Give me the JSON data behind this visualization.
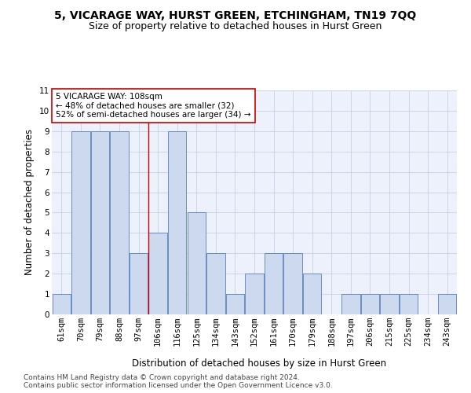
{
  "title": "5, VICARAGE WAY, HURST GREEN, ETCHINGHAM, TN19 7QQ",
  "subtitle": "Size of property relative to detached houses in Hurst Green",
  "xlabel": "Distribution of detached houses by size in Hurst Green",
  "ylabel": "Number of detached properties",
  "categories": [
    "61sqm",
    "70sqm",
    "79sqm",
    "88sqm",
    "97sqm",
    "106sqm",
    "116sqm",
    "125sqm",
    "134sqm",
    "143sqm",
    "152sqm",
    "161sqm",
    "170sqm",
    "179sqm",
    "188sqm",
    "197sqm",
    "206sqm",
    "215sqm",
    "225sqm",
    "234sqm",
    "243sqm"
  ],
  "values": [
    1,
    9,
    9,
    9,
    3,
    4,
    9,
    5,
    3,
    1,
    2,
    3,
    3,
    2,
    0,
    1,
    1,
    1,
    1,
    0,
    1
  ],
  "bar_color": "#ccd9ee",
  "bar_edge_color": "#5580b8",
  "grid_color": "#c8d0e8",
  "property_line_x": 4.5,
  "property_line_color": "#cc0000",
  "annotation_line1": "5 VICARAGE WAY: 108sqm",
  "annotation_line2": "← 48% of detached houses are smaller (32)",
  "annotation_line3": "52% of semi-detached houses are larger (34) →",
  "annotation_box_color": "#ffffff",
  "annotation_box_edge_color": "#cc0000",
  "ylim": [
    0,
    11
  ],
  "yticks": [
    0,
    1,
    2,
    3,
    4,
    5,
    6,
    7,
    8,
    9,
    10,
    11
  ],
  "footer_line1": "Contains HM Land Registry data © Crown copyright and database right 2024.",
  "footer_line2": "Contains public sector information licensed under the Open Government Licence v3.0.",
  "title_fontsize": 10,
  "subtitle_fontsize": 9,
  "axis_label_fontsize": 8.5,
  "tick_fontsize": 7.5,
  "annotation_fontsize": 7.5,
  "footer_fontsize": 6.5,
  "background_color": "#ffffff",
  "plot_bg_color": "#edf1fb"
}
